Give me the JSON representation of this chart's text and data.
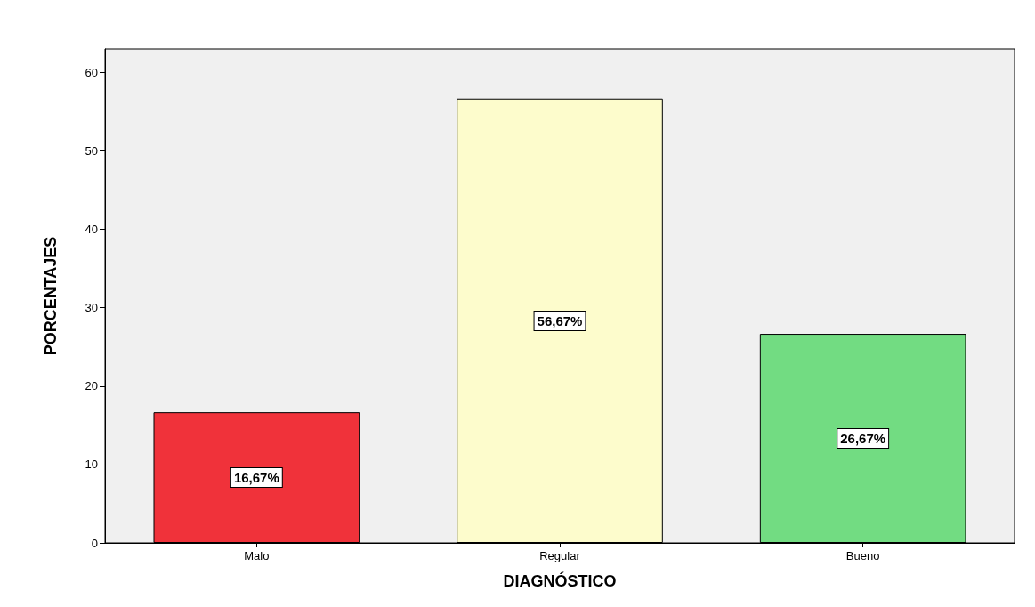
{
  "chart_data": {
    "type": "bar",
    "xlabel": "DIAGNÓSTICO",
    "ylabel": "PORCENTAJES",
    "categories": [
      "Malo",
      "Regular",
      "Bueno"
    ],
    "values": [
      16.67,
      56.67,
      26.67
    ],
    "colors": [
      "#f0323a",
      "#fdfccc",
      "#72dc82"
    ],
    "value_labels": [
      "16,67%",
      "56,67%",
      "26,67%"
    ],
    "ylim": [
      0,
      63
    ],
    "yticks": [
      0,
      10,
      20,
      30,
      40,
      50,
      60
    ],
    "grid": false
  }
}
